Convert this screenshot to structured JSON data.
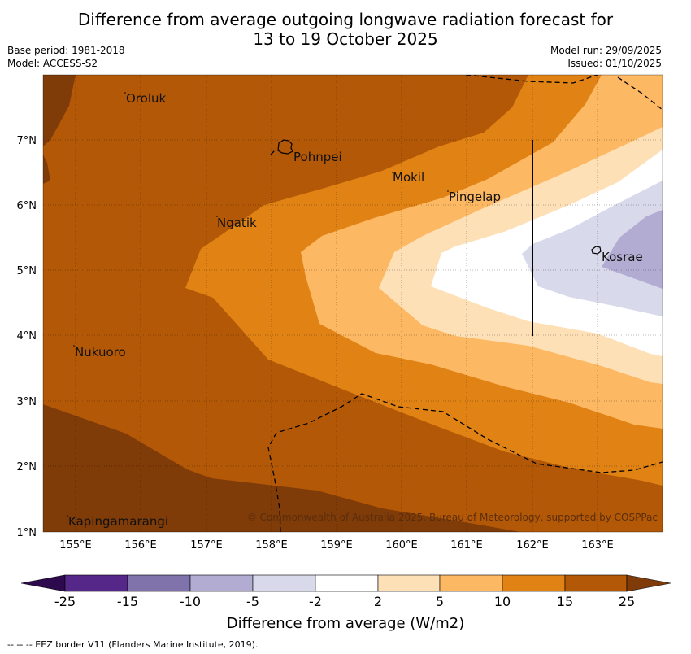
{
  "title": {
    "line1": "Difference from average outgoing longwave radiation forecast for",
    "line2": "13 to 19 October 2025"
  },
  "meta": {
    "base_period": "Base period: 1981-2018",
    "model": "Model: ACCESS-S2",
    "model_run": "Model run: 29/09/2025",
    "issued": "Issued: 01/10/2025"
  },
  "map": {
    "places": [
      "Oroluk",
      "Pohnpei",
      "Mokil",
      "Pingelap",
      "Ngatik",
      "Kosrae",
      "Nukuoro",
      "Kapingamarangi"
    ],
    "lon_ticks": [
      "155°E",
      "156°E",
      "157°E",
      "158°E",
      "159°E",
      "160°E",
      "161°E",
      "162°E",
      "163°E"
    ],
    "lat_ticks": [
      "7°N",
      "6°N",
      "5°N",
      "4°N",
      "3°N",
      "2°N",
      "1°N"
    ],
    "copyright": "© Commonwealth of Australia 2025, Bureau of Meteorology, supported by COSPPac"
  },
  "colorbar": {
    "labels": [
      "-25",
      "-15",
      "-10",
      "-5",
      "-2",
      "2",
      "5",
      "10",
      "15",
      "25"
    ],
    "colors": [
      "#2d0a4e",
      "#542788",
      "#8073ac",
      "#b2abd2",
      "#d8daeb",
      "#ffffff",
      "#fee0b6",
      "#fdb863",
      "#e08214",
      "#b35806",
      "#7f3b08"
    ],
    "title": "Difference from average (W/m2)"
  },
  "footnote": "--  --  -- EEZ border V11 (Flanders Marine Institute, 2019)."
}
